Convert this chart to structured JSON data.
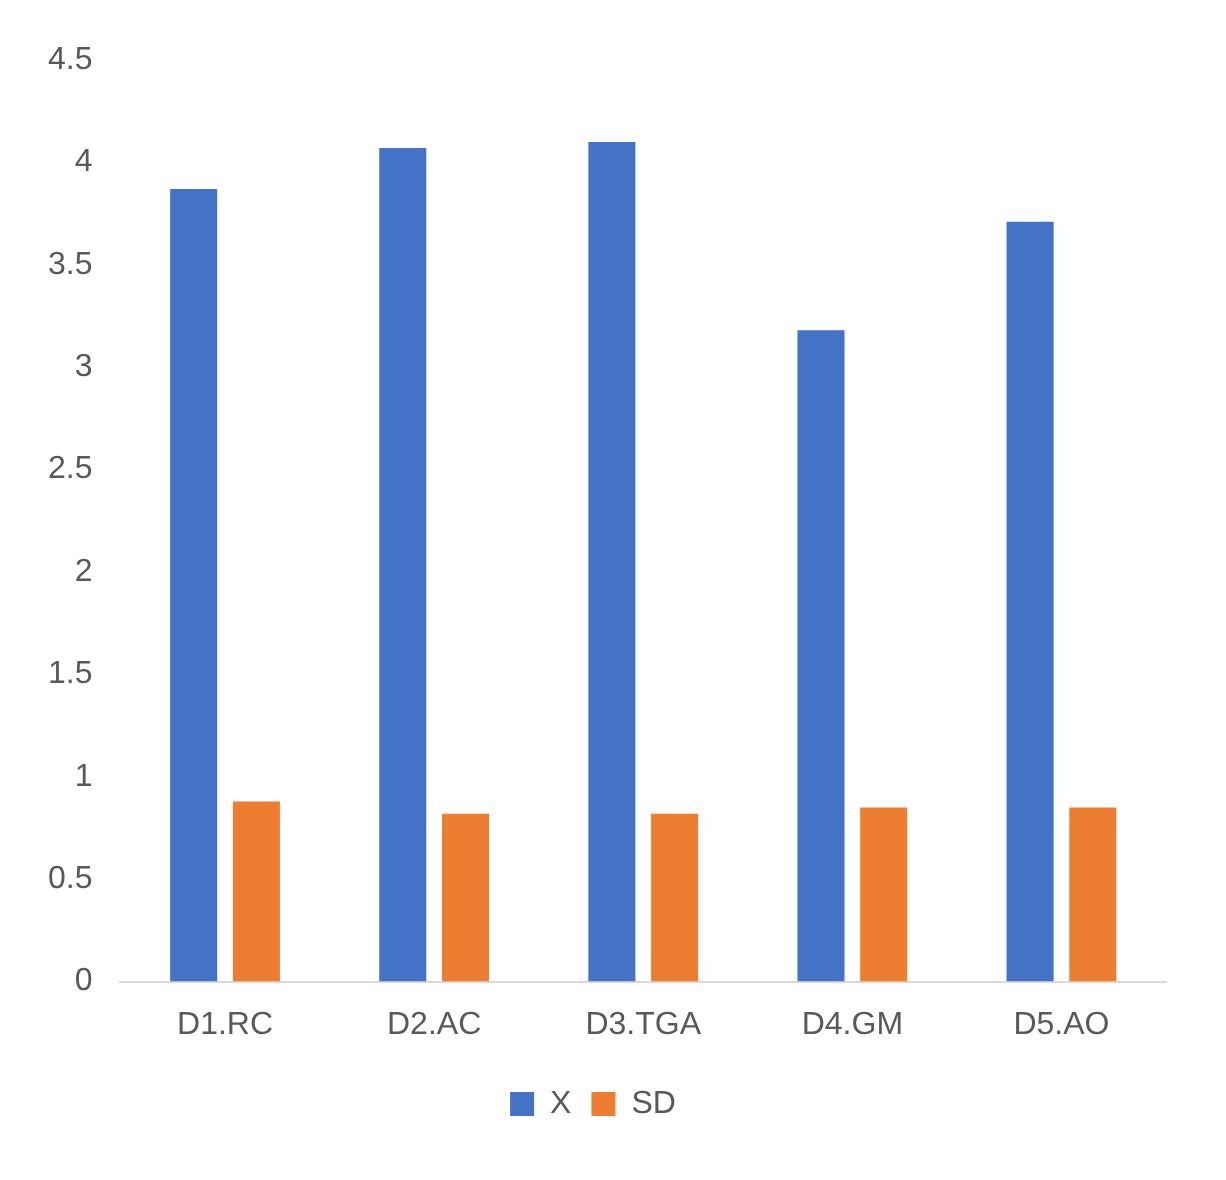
{
  "chart_data": {
    "type": "bar",
    "categories": [
      "D1.RC",
      "D2.AC",
      "D3.TGA",
      "D4.GM",
      "D5.AO"
    ],
    "series": [
      {
        "name": "X",
        "color": "#4472c4",
        "values": [
          3.87,
          4.07,
          4.1,
          3.18,
          3.71
        ]
      },
      {
        "name": "SD",
        "color": "#ed7d31",
        "values": [
          0.88,
          0.82,
          0.82,
          0.85,
          0.85
        ]
      }
    ],
    "ylim": [
      0,
      4.5
    ],
    "yticks": [
      0,
      0.5,
      1,
      1.5,
      2,
      2.5,
      3,
      3.5,
      4,
      4.5
    ],
    "grid": false,
    "legend": "bottom"
  }
}
